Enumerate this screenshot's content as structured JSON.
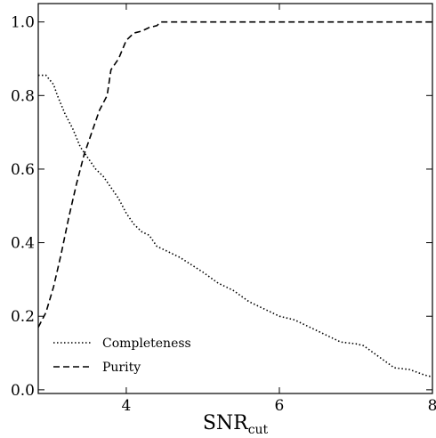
{
  "chart_data": {
    "type": "line",
    "title": "",
    "xlabel_main": "SNR",
    "xlabel_sub": "cut",
    "ylabel": "",
    "xlim": [
      2.85,
      8.0
    ],
    "ylim": [
      -0.01,
      1.05
    ],
    "xticks": [
      4,
      6,
      8
    ],
    "xtick_labels": [
      "4",
      "6",
      "8"
    ],
    "yticks": [
      0.0,
      0.2,
      0.4,
      0.6,
      0.8,
      1.0
    ],
    "ytick_labels": [
      "0.0",
      "0.2",
      "0.4",
      "0.6",
      "0.8",
      "1.0"
    ],
    "grid": false,
    "legend_position": "bottom-left",
    "series": [
      {
        "name": "Completeness",
        "style": "dotted",
        "color": "#000000",
        "x": [
          2.85,
          2.95,
          3.05,
          3.1,
          3.2,
          3.3,
          3.4,
          3.5,
          3.6,
          3.7,
          3.8,
          3.9,
          4.0,
          4.1,
          4.2,
          4.3,
          4.4,
          4.5,
          4.7,
          5.0,
          5.2,
          5.4,
          5.6,
          5.8,
          6.0,
          6.2,
          6.5,
          6.8,
          7.0,
          7.1,
          7.3,
          7.5,
          7.7,
          7.9,
          8.0
        ],
        "y": [
          0.855,
          0.855,
          0.83,
          0.8,
          0.75,
          0.71,
          0.66,
          0.63,
          0.6,
          0.58,
          0.55,
          0.52,
          0.48,
          0.45,
          0.43,
          0.42,
          0.39,
          0.38,
          0.36,
          0.32,
          0.29,
          0.27,
          0.24,
          0.22,
          0.2,
          0.19,
          0.16,
          0.13,
          0.125,
          0.12,
          0.09,
          0.06,
          0.055,
          0.04,
          0.035
        ]
      },
      {
        "name": "Purity",
        "style": "dashed",
        "color": "#000000",
        "x": [
          2.85,
          2.95,
          3.05,
          3.15,
          3.25,
          3.35,
          3.45,
          3.55,
          3.65,
          3.75,
          3.8,
          3.9,
          4.0,
          4.1,
          4.2,
          4.3,
          4.4,
          4.45,
          4.5,
          5.0,
          6.0,
          7.0,
          8.0
        ],
        "y": [
          0.17,
          0.21,
          0.28,
          0.37,
          0.47,
          0.56,
          0.64,
          0.7,
          0.76,
          0.8,
          0.87,
          0.9,
          0.95,
          0.97,
          0.975,
          0.985,
          0.99,
          1.0,
          1.0,
          1.0,
          1.0,
          1.0,
          1.0
        ]
      }
    ]
  }
}
